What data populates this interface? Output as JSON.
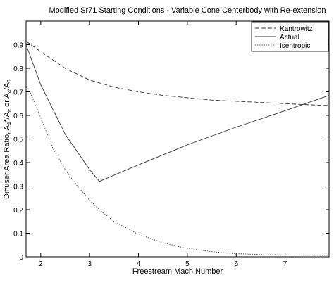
{
  "chart_data": {
    "type": "line",
    "title": "Modified Sr71 Starting Conditions - Variable Cone Centerbody with Re-extension",
    "xlabel": "Freestream Mach Number",
    "ylabel_parts": [
      "Diffuser Area Ratio, A",
      "4",
      "*/A",
      "c",
      " or A",
      "4",
      "/A",
      "0"
    ],
    "xlim": [
      1.7,
      7.9
    ],
    "ylim": [
      0,
      1.0
    ],
    "xticks": [
      2,
      3,
      4,
      5,
      6,
      7
    ],
    "yticks": [
      0,
      0.1,
      0.2,
      0.3,
      0.4,
      0.5,
      0.6,
      0.7,
      0.8,
      0.9
    ],
    "grid": false,
    "legend_position": "top-right",
    "series": [
      {
        "name": "Kantrowitz",
        "style": "dashed",
        "x": [
          1.7,
          2.0,
          2.5,
          3.0,
          3.5,
          4.0,
          4.5,
          5.0,
          5.5,
          6.0,
          6.5,
          7.0,
          7.5,
          7.9
        ],
        "y": [
          0.915,
          0.87,
          0.8,
          0.75,
          0.72,
          0.7,
          0.685,
          0.675,
          0.665,
          0.66,
          0.655,
          0.65,
          0.645,
          0.642
        ]
      },
      {
        "name": "Actual",
        "style": "solid",
        "x": [
          1.7,
          2.0,
          2.5,
          3.0,
          3.2,
          4.0,
          5.0,
          6.0,
          7.0,
          7.9
        ],
        "y": [
          0.9,
          0.73,
          0.52,
          0.37,
          0.32,
          0.39,
          0.475,
          0.55,
          0.62,
          0.685
        ]
      },
      {
        "name": "Isentropic",
        "style": "dotted",
        "x": [
          1.7,
          1.8,
          2.0,
          2.25,
          2.5,
          2.75,
          3.0,
          3.25,
          3.5,
          4.0,
          4.5,
          5.0,
          5.5,
          6.0,
          6.5,
          7.0,
          7.9
        ],
        "y": [
          0.74,
          0.69,
          0.59,
          0.46,
          0.37,
          0.3,
          0.24,
          0.19,
          0.15,
          0.095,
          0.06,
          0.035,
          0.022,
          0.013,
          0.01,
          0.008,
          0.006
        ]
      }
    ]
  }
}
